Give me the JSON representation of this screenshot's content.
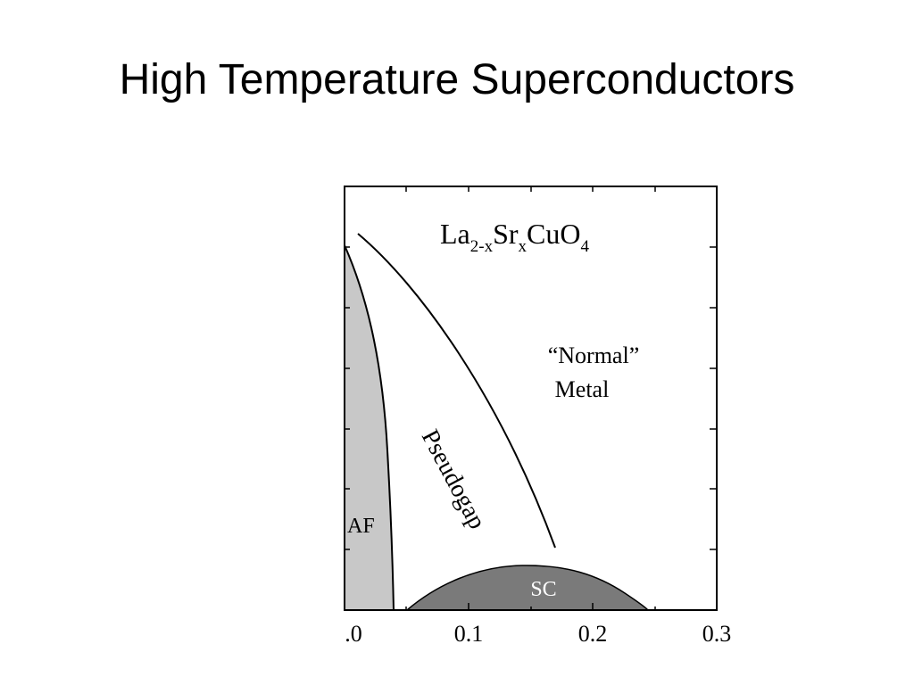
{
  "slide": {
    "title": "High Temperature Superconductors"
  },
  "diagram": {
    "compound": {
      "base1": "La",
      "sub1": "2-x",
      "base2": "Sr",
      "sub2": "x",
      "base3": "CuO",
      "sub3": "4"
    },
    "regions": {
      "af": "AF",
      "pseudogap": "Pseudogap",
      "normal_line1": "“Normal”",
      "normal_line2": "Metal",
      "sc": "SC"
    },
    "x_axis": {
      "ticks": [
        ".0",
        "0.1",
        "0.2",
        "0.3"
      ],
      "range": [
        0,
        0.3
      ]
    },
    "colors": {
      "af_fill": "#c8c8c8",
      "sc_fill": "#7a7a7a",
      "sc_label": "#ffffff",
      "line": "#000000"
    }
  }
}
